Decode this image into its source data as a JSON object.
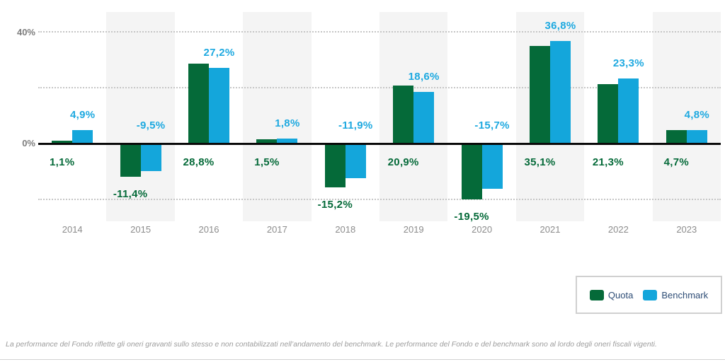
{
  "chart_data": {
    "type": "bar",
    "title": "",
    "categories": [
      "2014",
      "2015",
      "2016",
      "2017",
      "2018",
      "2019",
      "2020",
      "2021",
      "2022",
      "2023"
    ],
    "series": [
      {
        "name": "Quota",
        "color": "#056a39",
        "values": [
          1.1,
          -11.4,
          28.8,
          1.5,
          -15.2,
          20.9,
          -19.5,
          35.1,
          21.3,
          4.7
        ],
        "labels": [
          "1,1%",
          "-11,4%",
          "28,8%",
          "1,5%",
          "-15,2%",
          "20,9%",
          "-19,5%",
          "35,1%",
          "21,3%",
          "4,7%"
        ]
      },
      {
        "name": "Benchmark",
        "color": "#14a6db",
        "values": [
          4.9,
          -9.5,
          27.2,
          1.8,
          -11.9,
          18.6,
          -15.7,
          36.8,
          23.3,
          4.8
        ],
        "labels": [
          "4,9%",
          "-9,5%",
          "27,2%",
          "1,8%",
          "-11,9%",
          "18,6%",
          "-15,7%",
          "36,8%",
          "23,3%",
          "4,8%"
        ]
      }
    ],
    "y_axis": {
      "ticks": [
        {
          "label": "40%",
          "value": 40
        },
        {
          "label": "0%",
          "value": 0
        }
      ],
      "gridline_values": [
        40,
        20,
        -20
      ],
      "ylim": [
        -25,
        45
      ]
    },
    "grid": "horizontal-dotted",
    "legend_position": "bottom-right",
    "value_label_colors": {
      "Quota": "#056a39",
      "Benchmark": "#1ea9e0"
    },
    "alternating_band_color": "#f4f4f4"
  },
  "legend": {
    "items": [
      {
        "label": "Quota",
        "color": "#056a39"
      },
      {
        "label": "Benchmark",
        "color": "#14a6db"
      }
    ]
  },
  "footnote": "La performance del Fondo riflette gli oneri gravanti sullo stesso e non contabilizzati nell’andamento del benchmark. Le performance del Fondo e del benchmark sono al lordo degli oneri fiscali vigenti."
}
